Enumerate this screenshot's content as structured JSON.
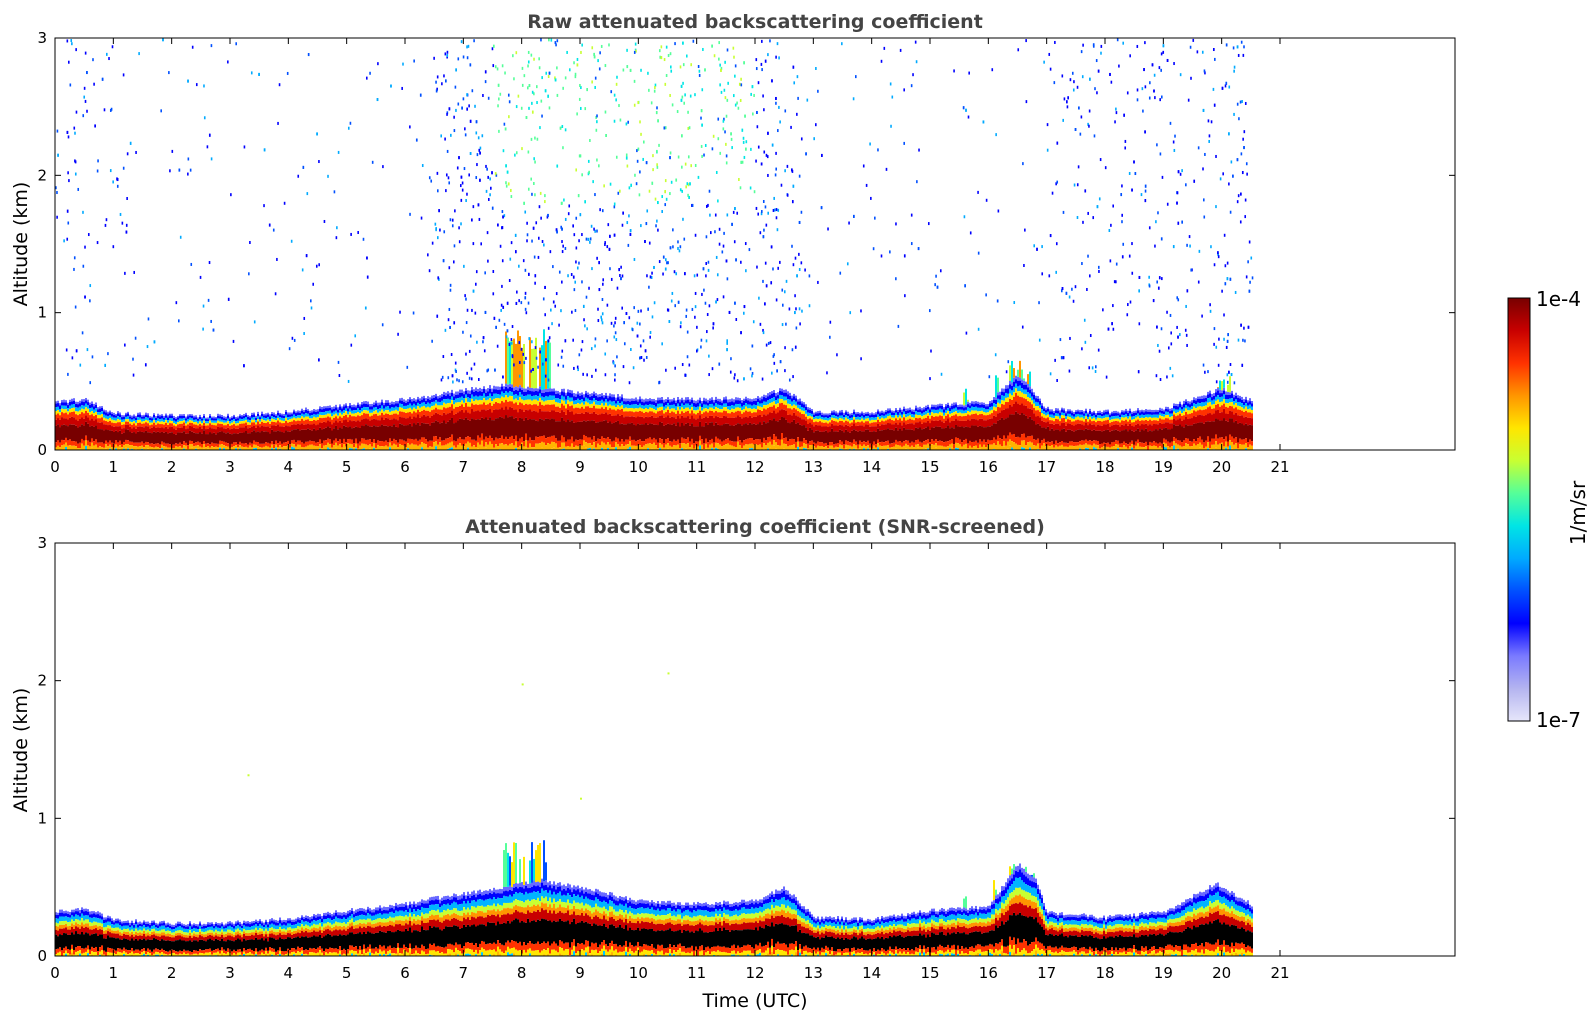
{
  "chart_data": [
    {
      "type": "heatmap",
      "title": "Raw attenuated backscattering coefficient",
      "xlabel": "",
      "ylabel": "Altitude (km)",
      "xlim": [
        0,
        24
      ],
      "ylim": [
        0,
        3
      ],
      "xticks": [
        0,
        1,
        2,
        3,
        4,
        5,
        6,
        7,
        8,
        9,
        10,
        11,
        12,
        13,
        14,
        15,
        16,
        17,
        18,
        19,
        20,
        21
      ],
      "yticks": [
        0,
        1,
        2,
        3
      ],
      "data_end_time": 20.55,
      "screened": false,
      "layer_top_km": [
        [
          0,
          0.35
        ],
        [
          0.5,
          0.37
        ],
        [
          1,
          0.27
        ],
        [
          2,
          0.25
        ],
        [
          3,
          0.25
        ],
        [
          4,
          0.28
        ],
        [
          5,
          0.33
        ],
        [
          6,
          0.37
        ],
        [
          6.5,
          0.4
        ],
        [
          7,
          0.44
        ],
        [
          7.7,
          0.47
        ],
        [
          8.3,
          0.45
        ],
        [
          9,
          0.42
        ],
        [
          10,
          0.38
        ],
        [
          11,
          0.37
        ],
        [
          12,
          0.38
        ],
        [
          12.5,
          0.45
        ],
        [
          13,
          0.28
        ],
        [
          14,
          0.28
        ],
        [
          15,
          0.32
        ],
        [
          16,
          0.35
        ],
        [
          16.5,
          0.55
        ],
        [
          17,
          0.3
        ],
        [
          18,
          0.28
        ],
        [
          19,
          0.3
        ],
        [
          20,
          0.45
        ],
        [
          20.55,
          0.35
        ]
      ],
      "plumes": [
        {
          "t0": 7.7,
          "t1": 8.5,
          "top_km": 0.9
        },
        {
          "t0": 16.35,
          "t1": 16.7,
          "top_km": 0.65
        },
        {
          "t0": 15.5,
          "t1": 15.65,
          "top_km": 0.45
        },
        {
          "t0": 16.05,
          "t1": 16.15,
          "top_km": 0.55
        },
        {
          "t0": 19.9,
          "t1": 20.15,
          "top_km": 0.55
        }
      ]
    },
    {
      "type": "heatmap",
      "title": "Attenuated backscattering coefficient (SNR-screened)",
      "xlabel": "Time (UTC)",
      "ylabel": "Altitude (km)",
      "xlim": [
        0,
        24
      ],
      "ylim": [
        0,
        3
      ],
      "xticks": [
        0,
        1,
        2,
        3,
        4,
        5,
        6,
        7,
        8,
        9,
        10,
        11,
        12,
        13,
        14,
        15,
        16,
        17,
        18,
        19,
        20,
        21
      ],
      "yticks": [
        0,
        1,
        2,
        3
      ],
      "data_end_time": 20.55,
      "screened": true,
      "layer_top_km": [
        [
          0,
          0.32
        ],
        [
          0.5,
          0.35
        ],
        [
          1,
          0.26
        ],
        [
          2,
          0.24
        ],
        [
          3,
          0.24
        ],
        [
          4,
          0.27
        ],
        [
          5,
          0.33
        ],
        [
          6,
          0.38
        ],
        [
          6.5,
          0.42
        ],
        [
          7,
          0.45
        ],
        [
          7.7,
          0.5
        ],
        [
          8.3,
          0.55
        ],
        [
          9,
          0.5
        ],
        [
          9.5,
          0.45
        ],
        [
          10,
          0.4
        ],
        [
          11,
          0.38
        ],
        [
          12,
          0.4
        ],
        [
          12.5,
          0.5
        ],
        [
          13,
          0.28
        ],
        [
          14,
          0.27
        ],
        [
          15,
          0.33
        ],
        [
          16,
          0.36
        ],
        [
          16.5,
          0.67
        ],
        [
          16.8,
          0.55
        ],
        [
          17,
          0.32
        ],
        [
          18,
          0.28
        ],
        [
          19,
          0.32
        ],
        [
          19.9,
          0.53
        ],
        [
          20.55,
          0.36
        ]
      ],
      "plumes": [
        {
          "t0": 7.65,
          "t1": 8.4,
          "top_km": 0.85
        },
        {
          "t0": 16.3,
          "t1": 16.8,
          "top_km": 0.67
        },
        {
          "t0": 15.5,
          "t1": 15.62,
          "top_km": 0.47
        },
        {
          "t0": 16.03,
          "t1": 16.12,
          "top_km": 0.58
        }
      ]
    }
  ],
  "colorbar": {
    "label": "1/m/sr",
    "min_label": "1e-7",
    "max_label": "1e-4",
    "scale": "log",
    "colormap": [
      "#e6e6fa",
      "#b4b4f0",
      "#7a7aff",
      "#0000ff",
      "#0050ff",
      "#00aaff",
      "#00e5e5",
      "#55ff99",
      "#c8ff32",
      "#ffe600",
      "#ff9600",
      "#ff3200",
      "#c80000",
      "#780000"
    ]
  }
}
